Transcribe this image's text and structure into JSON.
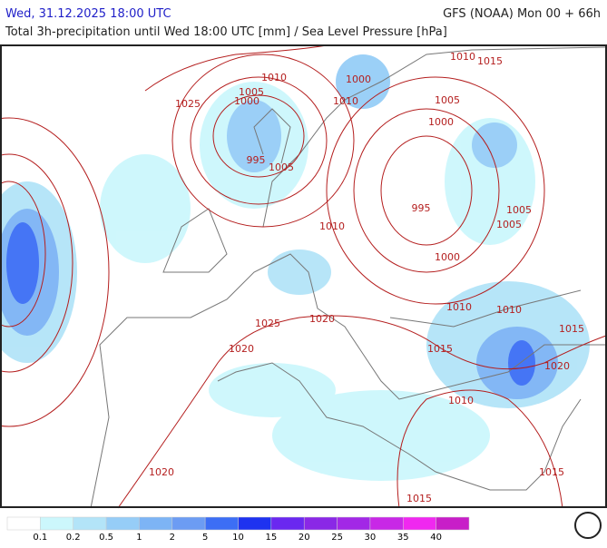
{
  "header": {
    "left": "Wed, 31.12.2025 18:00 UTC",
    "right": "GFS (NOAA) Mon 00 + 66h",
    "subtitle": "Total 3h-precipitation until Wed 18:00 UTC [mm] / Sea Level Pressure [hPa]"
  },
  "isobar_labels": [
    "1010",
    "1005",
    "1000",
    "1025",
    "1000",
    "1010",
    "1015",
    "1010",
    "1005",
    "1000",
    "995",
    "1005",
    "995",
    "1005",
    "1005",
    "1010",
    "1000",
    "1010",
    "1010",
    "1025",
    "1020",
    "1015",
    "1015",
    "1020",
    "1020",
    "1010",
    "1020",
    "1015",
    "1015"
  ],
  "legend": {
    "colors": [
      "#ffffff",
      "#ccf7fc",
      "#b3e4f8",
      "#96cdf7",
      "#7db4f5",
      "#6c9cf3",
      "#3c6ef5",
      "#1e32f0",
      "#6a28f0",
      "#8a28e6",
      "#a228e6",
      "#c828e6",
      "#f028f0",
      "#c81ec8"
    ],
    "labels": [
      0.1,
      0.2,
      0.5,
      1,
      2,
      5,
      10,
      15,
      20,
      25,
      30,
      35,
      40
    ]
  }
}
